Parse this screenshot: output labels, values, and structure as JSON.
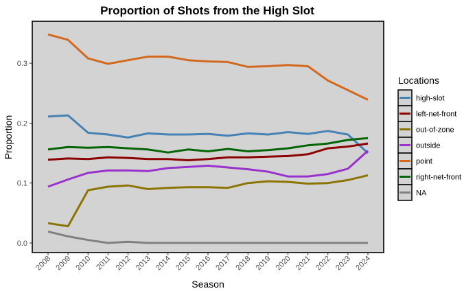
{
  "chart_data": {
    "type": "line",
    "title": "Proportion of Shots from the High Slot",
    "xlabel": "Season",
    "ylabel": "Proportion",
    "ylim": [
      -0.016,
      0.37
    ],
    "yticks": [
      0.0,
      0.1,
      0.2,
      0.3
    ],
    "ytick_labels": [
      "0.0",
      "0.1",
      "0.2",
      "0.3"
    ],
    "grid": false,
    "legend_title": "Locations",
    "legend_position": "right",
    "categories": [
      "2008",
      "2009",
      "2010",
      "2011",
      "2012",
      "2013",
      "2014",
      "2015",
      "2016",
      "2017",
      "2018",
      "2019",
      "2020",
      "2021",
      "2022",
      "2023",
      "2024"
    ],
    "series": [
      {
        "name": "high-slot",
        "color": "#4682b4",
        "values": [
          0.211,
          0.213,
          0.184,
          0.181,
          0.176,
          0.183,
          0.181,
          0.181,
          0.182,
          0.179,
          0.183,
          0.181,
          0.185,
          0.182,
          0.187,
          0.181,
          0.15
        ]
      },
      {
        "name": "left-net-front",
        "color": "#8b0000",
        "values": [
          0.139,
          0.141,
          0.14,
          0.143,
          0.142,
          0.14,
          0.14,
          0.138,
          0.14,
          0.143,
          0.143,
          0.144,
          0.145,
          0.148,
          0.158,
          0.161,
          0.166
        ]
      },
      {
        "name": "out-of-zone",
        "color": "#8b7500",
        "values": [
          0.033,
          0.028,
          0.088,
          0.094,
          0.096,
          0.09,
          0.092,
          0.093,
          0.093,
          0.092,
          0.1,
          0.103,
          0.102,
          0.099,
          0.1,
          0.105,
          0.113
        ]
      },
      {
        "name": "outside",
        "color": "#9932cc",
        "values": [
          0.094,
          0.106,
          0.117,
          0.121,
          0.121,
          0.12,
          0.125,
          0.127,
          0.129,
          0.126,
          0.123,
          0.119,
          0.111,
          0.111,
          0.115,
          0.124,
          0.154
        ]
      },
      {
        "name": "point",
        "color": "#d2691e",
        "values": [
          0.348,
          0.339,
          0.308,
          0.299,
          0.305,
          0.311,
          0.311,
          0.305,
          0.303,
          0.302,
          0.294,
          0.295,
          0.297,
          0.295,
          0.271,
          0.255,
          0.239
        ]
      },
      {
        "name": "right-net-front",
        "color": "#006400",
        "values": [
          0.156,
          0.16,
          0.159,
          0.16,
          0.158,
          0.156,
          0.151,
          0.156,
          0.153,
          0.157,
          0.153,
          0.155,
          0.158,
          0.163,
          0.166,
          0.172,
          0.175
        ]
      },
      {
        "name": "NA",
        "color": "#808080",
        "values": [
          0.019,
          0.011,
          0.005,
          0.0,
          0.002,
          0.0,
          0.0,
          0.0,
          0.0,
          0.0,
          0.0,
          0.0,
          0.0,
          0.0,
          0.0,
          0.0,
          0.0
        ]
      }
    ]
  }
}
